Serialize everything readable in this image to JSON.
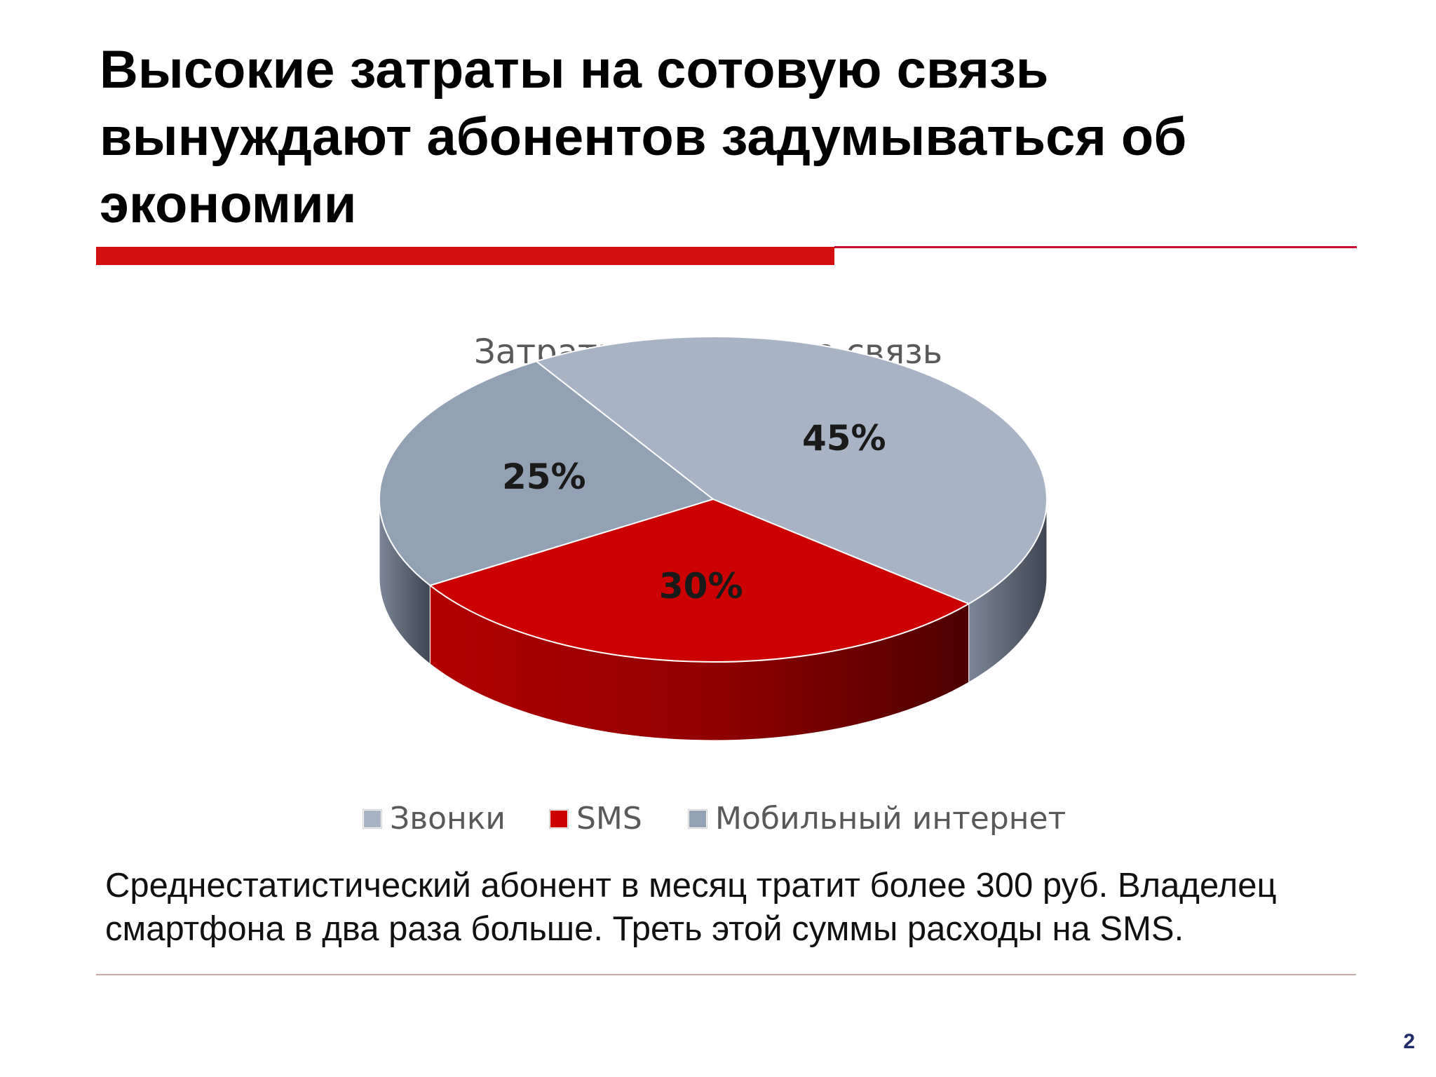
{
  "slide": {
    "title": "Высокие затраты на сотовую связь вынуждают абонентов задумываться об экономии",
    "caption": "Среднестатистический абонент в месяц тратит более 300 руб. Владелец смартфона в два раза больше. Треть этой суммы расходы на SMS.",
    "page_number": "2",
    "accent_color": "#d20f0f"
  },
  "chart_data": {
    "type": "pie",
    "title": "Затраты на сотовую связь",
    "style": "3d",
    "legend_position": "bottom",
    "slices": [
      {
        "name": "Звонки",
        "value": 45,
        "label": "45%",
        "color": "#a8b4c6"
      },
      {
        "name": "SMS",
        "value": 30,
        "label": "30%",
        "color": "#cc0000"
      },
      {
        "name": "Мобильный интернет",
        "value": 25,
        "label": "25%",
        "color": "#93a1b5"
      }
    ]
  }
}
